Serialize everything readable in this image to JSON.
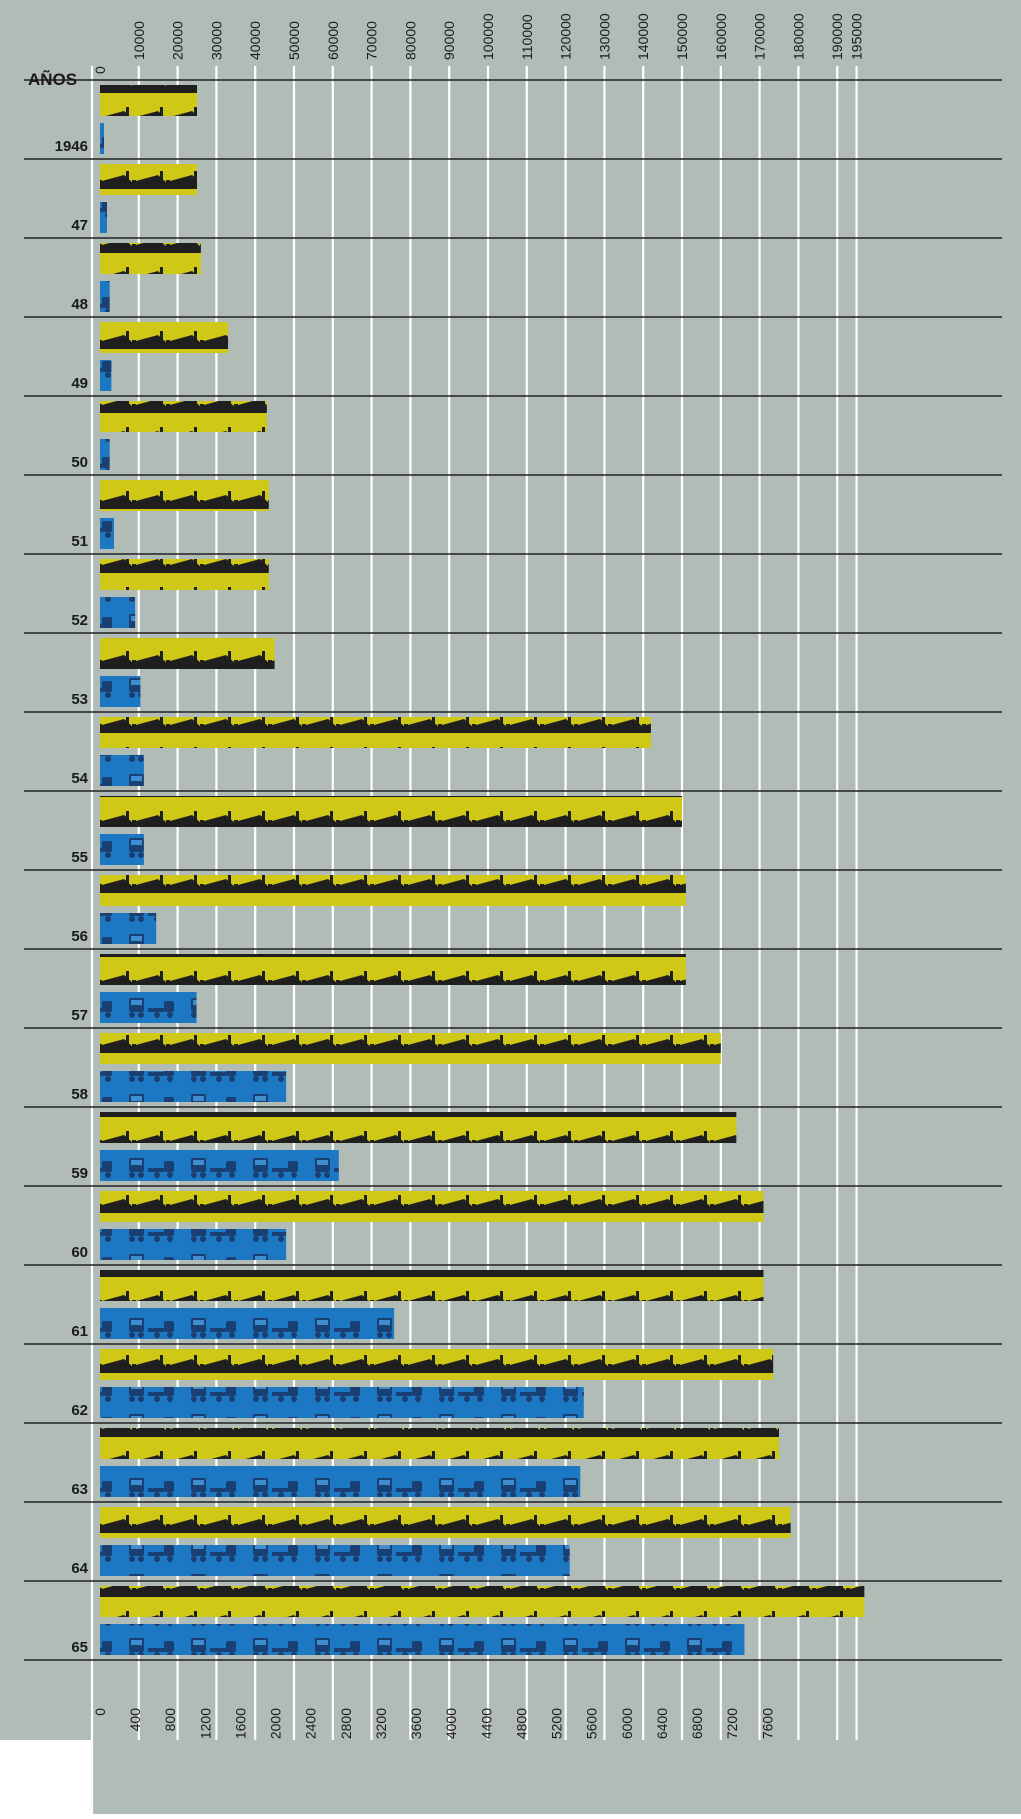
{
  "chart_data": {
    "type": "bar",
    "header_label": "AÑOS",
    "categories": [
      "1946",
      "47",
      "48",
      "49",
      "50",
      "51",
      "52",
      "53",
      "54",
      "55",
      "56",
      "57",
      "58",
      "59",
      "60",
      "61",
      "62",
      "63",
      "64",
      "65"
    ],
    "top_axis": {
      "ticks": [
        "0",
        "10000",
        "20000",
        "30000",
        "40000",
        "50000",
        "60000",
        "70000",
        "80000",
        "90000",
        "100000",
        "110000",
        "120000",
        "130000",
        "140000",
        "150000",
        "160000",
        "170000",
        "180000",
        "190000",
        "195000"
      ],
      "ticks_values": [
        0,
        10000,
        20000,
        30000,
        40000,
        50000,
        60000,
        70000,
        80000,
        90000,
        100000,
        110000,
        120000,
        130000,
        140000,
        150000,
        160000,
        170000,
        180000,
        190000,
        195000
      ],
      "range": [
        0,
        200000
      ]
    },
    "bottom_axis": {
      "ticks": [
        "0",
        "400",
        "800",
        "1200",
        "1600",
        "2000",
        "2400",
        "2800",
        "3200",
        "3600",
        "4000",
        "4400",
        "4800",
        "5200",
        "5600",
        "6000",
        "6400",
        "6800",
        "7200",
        "7600"
      ],
      "ticks_values": [
        0,
        400,
        800,
        1200,
        1600,
        2000,
        2400,
        2800,
        3200,
        3600,
        4000,
        4400,
        4800,
        5200,
        5600,
        6000,
        6400,
        6800,
        7200,
        7600
      ],
      "range": [
        0,
        8000
      ]
    },
    "series": [
      {
        "color": "#cfc817",
        "icon": "train-icon",
        "axis": "top",
        "values": [
          25000,
          25000,
          26000,
          33000,
          43000,
          43500,
          43500,
          45000,
          142000,
          150000,
          151000,
          151000,
          160000,
          164000,
          171000,
          171000,
          173500,
          175000,
          178000,
          197000
        ]
      },
      {
        "color": "#1c78c2",
        "icon": "bus-truck-icon",
        "axis": "bottom",
        "values": [
          20,
          80,
          110,
          130,
          110,
          160,
          400,
          460,
          500,
          500,
          640,
          1100,
          2120,
          2720,
          2120,
          3350,
          5510,
          5470,
          5350,
          7340
        ]
      }
    ],
    "colors": {
      "background": "#b1bcb6",
      "grid": "#ffffff",
      "separator": "#222222",
      "train_bar": "#cfc817",
      "train_ink": "#1f1f1f",
      "vehicle_bar": "#1c78c2",
      "vehicle_ink": "#1a3f72"
    }
  }
}
